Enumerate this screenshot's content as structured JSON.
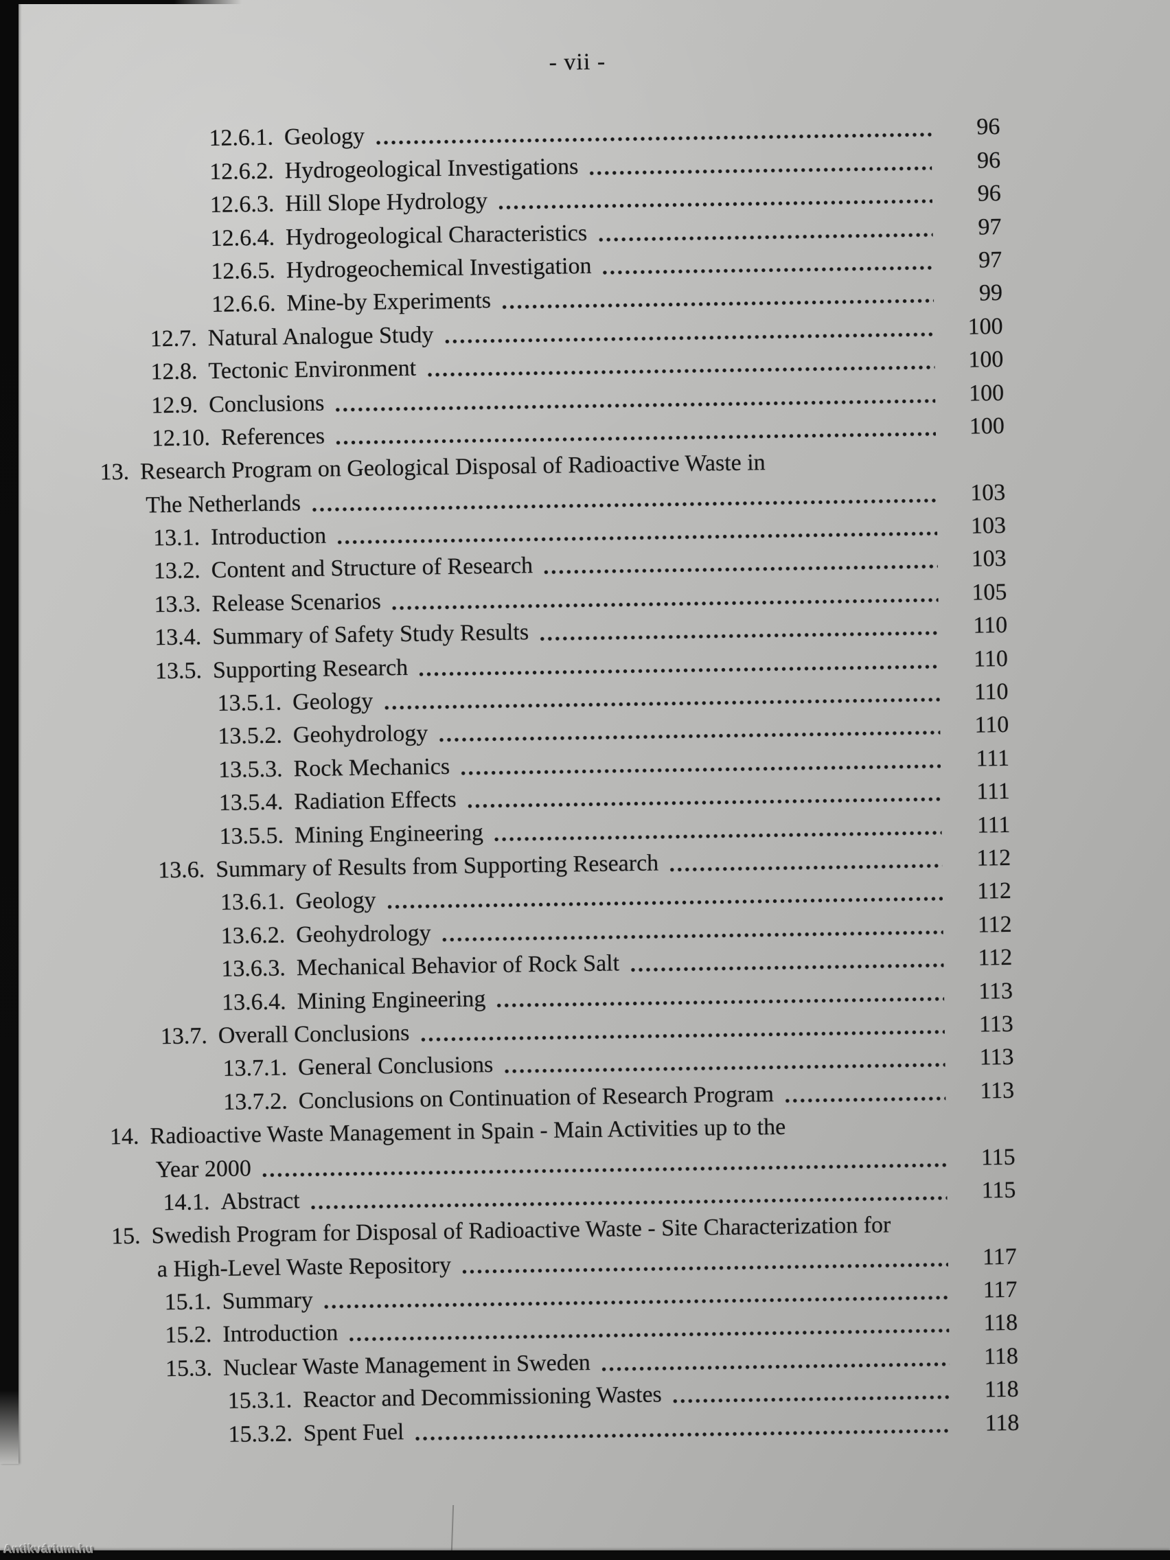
{
  "page": {
    "header": "- vii -",
    "watermark": "Antikvárium.hu"
  },
  "colors": {
    "paper": "#bdbdbb",
    "ink": "#161616",
    "scan_edge": "#0b0b0b"
  },
  "toc": {
    "entries": [
      {
        "level": "l3",
        "num": "12.6.1.",
        "title": "Geology",
        "page": "96",
        "dots": true
      },
      {
        "level": "l3",
        "num": "12.6.2.",
        "title": "Hydrogeological Investigations",
        "page": "96",
        "dots": true
      },
      {
        "level": "l3",
        "num": "12.6.3.",
        "title": "Hill Slope Hydrology",
        "page": "96",
        "dots": true
      },
      {
        "level": "l3",
        "num": "12.6.4.",
        "title": "Hydrogeological Characteristics",
        "page": "97",
        "dots": true
      },
      {
        "level": "l3",
        "num": "12.6.5.",
        "title": "Hydrogeochemical Investigation",
        "page": "97",
        "dots": true
      },
      {
        "level": "l3",
        "num": "12.6.6.",
        "title": "Mine-by Experiments",
        "page": "99",
        "dots": true
      },
      {
        "level": "l2",
        "num": "12.7.",
        "title": "Natural Analogue Study",
        "page": "100",
        "dots": true
      },
      {
        "level": "l2",
        "num": "12.8.",
        "title": "Tectonic Environment",
        "page": "100",
        "dots": true
      },
      {
        "level": "l2",
        "num": "12.9.",
        "title": "Conclusions",
        "page": "100",
        "dots": true
      },
      {
        "level": "l2",
        "num": "12.10.",
        "title": "References",
        "page": "100",
        "dots": true
      },
      {
        "level": "l1",
        "num": "13.",
        "title": "Research Program on Geological Disposal of Radioactive Waste in",
        "page": "",
        "dots": false
      },
      {
        "level": "cont",
        "num": "",
        "title": "The Netherlands",
        "page": "103",
        "dots": true
      },
      {
        "level": "l2",
        "num": "13.1.",
        "title": "Introduction",
        "page": "103",
        "dots": true
      },
      {
        "level": "l2",
        "num": "13.2.",
        "title": "Content and Structure of Research",
        "page": "103",
        "dots": true
      },
      {
        "level": "l2",
        "num": "13.3.",
        "title": "Release Scenarios",
        "page": "105",
        "dots": true
      },
      {
        "level": "l2",
        "num": "13.4.",
        "title": "Summary of Safety Study Results",
        "page": "110",
        "dots": true
      },
      {
        "level": "l2",
        "num": "13.5.",
        "title": "Supporting Research",
        "page": "110",
        "dots": true
      },
      {
        "level": "l3",
        "num": "13.5.1.",
        "title": "Geology",
        "page": "110",
        "dots": true
      },
      {
        "level": "l3",
        "num": "13.5.2.",
        "title": "Geohydrology",
        "page": "110",
        "dots": true
      },
      {
        "level": "l3",
        "num": "13.5.3.",
        "title": "Rock Mechanics",
        "page": "111",
        "dots": true
      },
      {
        "level": "l3",
        "num": "13.5.4.",
        "title": "Radiation Effects",
        "page": "111",
        "dots": true
      },
      {
        "level": "l3",
        "num": "13.5.5.",
        "title": "Mining Engineering",
        "page": "111",
        "dots": true
      },
      {
        "level": "l2",
        "num": "13.6.",
        "title": "Summary of Results from Supporting Research",
        "page": "112",
        "dots": true
      },
      {
        "level": "l3",
        "num": "13.6.1.",
        "title": "Geology",
        "page": "112",
        "dots": true
      },
      {
        "level": "l3",
        "num": "13.6.2.",
        "title": "Geohydrology",
        "page": "112",
        "dots": true
      },
      {
        "level": "l3",
        "num": "13.6.3.",
        "title": "Mechanical Behavior of Rock Salt",
        "page": "112",
        "dots": true
      },
      {
        "level": "l3",
        "num": "13.6.4.",
        "title": "Mining Engineering",
        "page": "113",
        "dots": true
      },
      {
        "level": "l2",
        "num": "13.7.",
        "title": "Overall Conclusions",
        "page": "113",
        "dots": true
      },
      {
        "level": "l3",
        "num": "13.7.1.",
        "title": "General Conclusions",
        "page": "113",
        "dots": true
      },
      {
        "level": "l3",
        "num": "13.7.2.",
        "title": "Conclusions on Continuation of Research Program",
        "page": "113",
        "dots": true
      },
      {
        "level": "l1",
        "num": "14.",
        "title": "Radioactive Waste Management in Spain - Main Activities up to the",
        "page": "",
        "dots": false
      },
      {
        "level": "cont",
        "num": "",
        "title": "Year 2000",
        "page": "115",
        "dots": true
      },
      {
        "level": "l2",
        "num": "14.1.",
        "title": "Abstract",
        "page": "115",
        "dots": true
      },
      {
        "level": "l1",
        "num": "15.",
        "title": "Swedish Program for Disposal of Radioactive Waste - Site Characterization for",
        "page": "",
        "dots": false
      },
      {
        "level": "cont",
        "num": "",
        "title": "a High-Level Waste Repository",
        "page": "117",
        "dots": true
      },
      {
        "level": "l2",
        "num": "15.1.",
        "title": "Summary",
        "page": "117",
        "dots": true
      },
      {
        "level": "l2",
        "num": "15.2.",
        "title": "Introduction",
        "page": "118",
        "dots": true
      },
      {
        "level": "l2",
        "num": "15.3.",
        "title": "Nuclear Waste Management in Sweden",
        "page": "118",
        "dots": true
      },
      {
        "level": "l3",
        "num": "15.3.1.",
        "title": "Reactor and Decommissioning Wastes",
        "page": "118",
        "dots": true
      },
      {
        "level": "l3",
        "num": "15.3.2.",
        "title": "Spent Fuel",
        "page": "118",
        "dots": true
      }
    ]
  }
}
